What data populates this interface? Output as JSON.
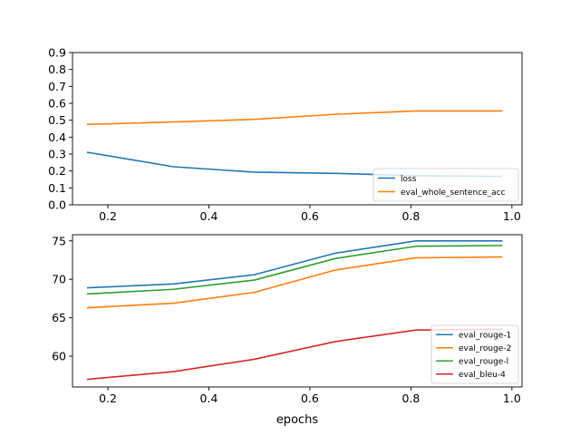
{
  "chart_data": [
    {
      "type": "line",
      "xlim": [
        0.13,
        1.02
      ],
      "ylim": [
        0,
        0.9
      ],
      "xticks": [
        "0.2",
        "0.4",
        "0.6",
        "0.8",
        "1.0"
      ],
      "yticks": [
        "0.0",
        "0.1",
        "0.2",
        "0.3",
        "0.4",
        "0.5",
        "0.6",
        "0.7",
        "0.8",
        "0.9"
      ],
      "xlabel": "",
      "ylabel": "",
      "legend": "lower-right",
      "x": [
        0.16,
        0.33,
        0.49,
        0.65,
        0.81,
        0.98
      ],
      "series": [
        {
          "name": "loss",
          "color": "#1f77b4",
          "values": [
            0.31,
            0.225,
            0.193,
            0.186,
            0.172,
            0.168
          ]
        },
        {
          "name": "eval_whole_sentence_acc",
          "color": "#ff7f0e",
          "values": [
            0.475,
            0.49,
            0.505,
            0.535,
            0.555,
            0.555
          ]
        }
      ]
    },
    {
      "type": "line",
      "xlim": [
        0.13,
        1.02
      ],
      "ylim": [
        56,
        75.8
      ],
      "xticks": [
        "0.2",
        "0.4",
        "0.6",
        "0.8",
        "1.0"
      ],
      "yticks": [
        "60",
        "65",
        "70",
        "75"
      ],
      "xlabel": "epochs",
      "ylabel": "",
      "legend": "lower-right",
      "x": [
        0.16,
        0.33,
        0.49,
        0.65,
        0.81,
        0.98
      ],
      "series": [
        {
          "name": "eval_rouge-1",
          "color": "#1f77b4",
          "values": [
            68.9,
            69.4,
            70.6,
            73.4,
            75.0,
            75.0
          ]
        },
        {
          "name": "eval_rouge-2",
          "color": "#ff7f0e",
          "values": [
            66.3,
            66.9,
            68.3,
            71.2,
            72.8,
            72.9
          ]
        },
        {
          "name": "eval_rouge-l",
          "color": "#2ca02c",
          "values": [
            68.1,
            68.7,
            69.9,
            72.7,
            74.3,
            74.4
          ]
        },
        {
          "name": "eval_bleu-4",
          "color": "#d62728",
          "values": [
            57.0,
            58.0,
            59.6,
            61.9,
            63.4,
            63.5
          ]
        }
      ]
    }
  ]
}
